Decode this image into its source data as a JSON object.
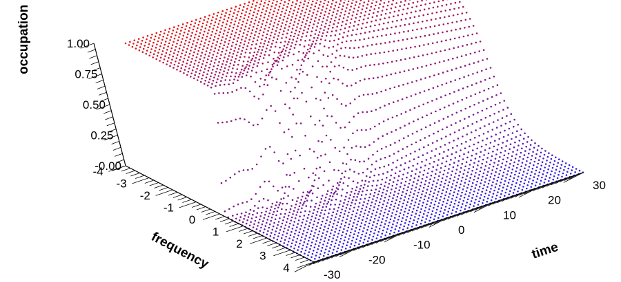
{
  "chart_data": {
    "type": "scatter",
    "title": "",
    "xlabel": "time",
    "ylabel": "frequency",
    "zlabel": "occupation",
    "x_range": [
      -30,
      30
    ],
    "y_range": [
      -4,
      4
    ],
    "z_range": [
      0,
      1
    ],
    "x_ticks": [
      "-30",
      "-20",
      "-10",
      "0",
      "10",
      "20",
      "30"
    ],
    "y_ticks": [
      "-4",
      "-3",
      "-2",
      "-1",
      "0",
      "1",
      "2",
      "3",
      "4"
    ],
    "z_ticks": [
      "-0.00",
      "0.25",
      "0.50",
      "0.75",
      "1.00"
    ],
    "surface": {
      "description_of_values": "occupation ≈ 1 for negative frequency, ≈ 0 for positive frequency (Fermi-like step); near time ≈ -15 the step is sharp with noisy oscillations, for later times the step broadens smoothly",
      "samples": [
        {
          "time": -30,
          "frequency": -4,
          "occupation": 0.98
        },
        {
          "time": -30,
          "frequency": 0,
          "occupation": 0.5
        },
        {
          "time": -30,
          "frequency": 4,
          "occupation": 0.02
        },
        {
          "time": 0,
          "frequency": -4,
          "occupation": 0.95
        },
        {
          "time": 0,
          "frequency": 0,
          "occupation": 0.5
        },
        {
          "time": 0,
          "frequency": 4,
          "occupation": 0.05
        },
        {
          "time": 30,
          "frequency": -4,
          "occupation": 0.9
        },
        {
          "time": 30,
          "frequency": 0,
          "occupation": 0.5
        },
        {
          "time": 30,
          "frequency": 4,
          "occupation": 0.1
        }
      ]
    },
    "colors": {
      "low_frequency": "#e8150f",
      "high_frequency": "#2a22f2"
    },
    "grid": false,
    "legend": "none"
  }
}
